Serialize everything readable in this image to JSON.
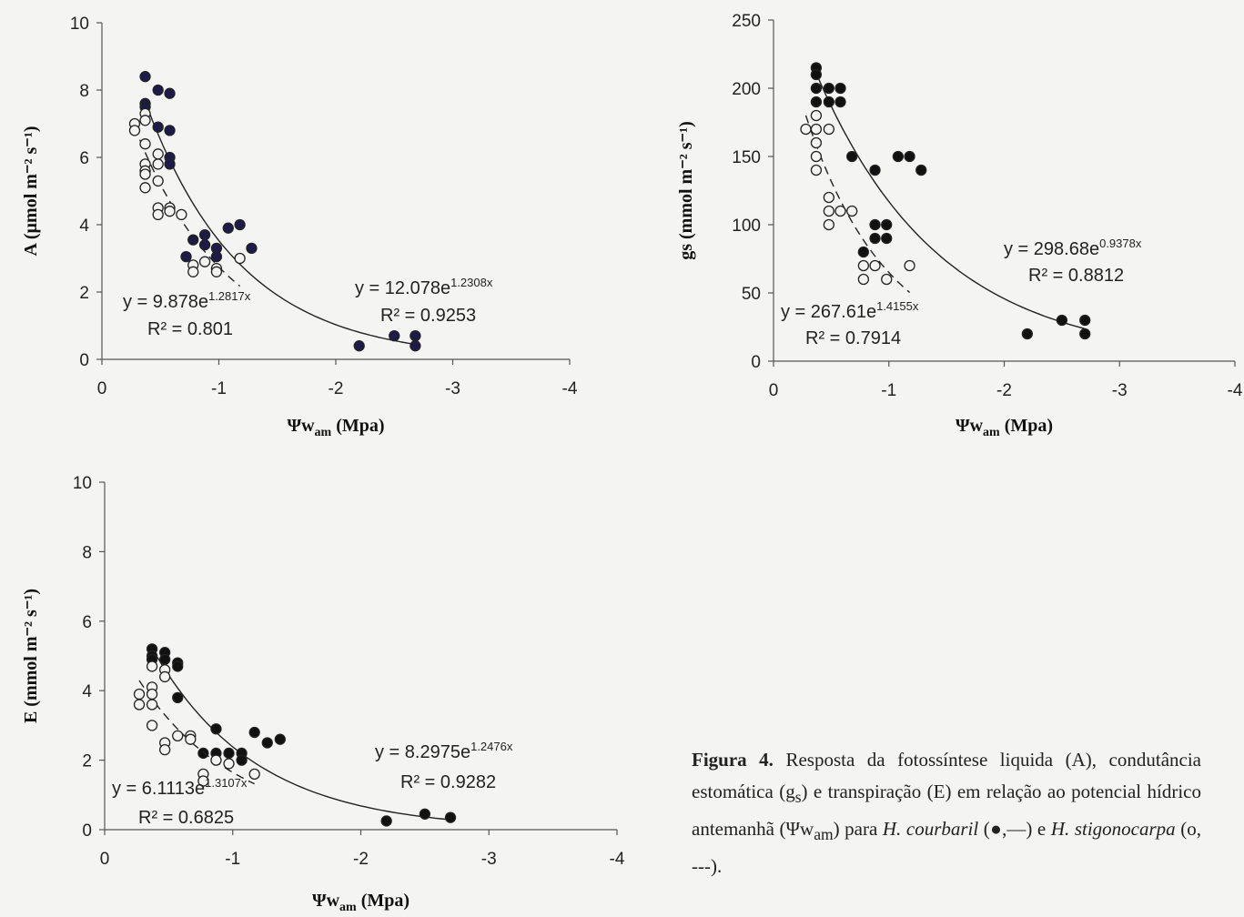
{
  "chart_data": [
    {
      "type": "scatter",
      "id": "A",
      "ylabel": "A (µmol m⁻² s⁻¹)",
      "xlabel": "Ψw_am (Mpa)",
      "xlim": [
        0,
        -4
      ],
      "ylim": [
        0,
        10
      ],
      "xticks": [
        "0",
        "-1",
        "-2",
        "-3",
        "-4"
      ],
      "yticks": [
        "0",
        "2",
        "4",
        "6",
        "8",
        "10"
      ],
      "series": [
        {
          "marker": "filled",
          "points": [
            [
              -0.37,
              8.4
            ],
            [
              -0.37,
              7.6
            ],
            [
              -0.37,
              7.5
            ],
            [
              -0.48,
              8.0
            ],
            [
              -0.58,
              7.9
            ],
            [
              -0.48,
              6.9
            ],
            [
              -0.58,
              6.8
            ],
            [
              -0.58,
              6.0
            ],
            [
              -0.58,
              5.8
            ],
            [
              -0.72,
              3.05
            ],
            [
              -0.78,
              3.55
            ],
            [
              -0.88,
              3.7
            ],
            [
              -0.88,
              3.4
            ],
            [
              -0.98,
              3.3
            ],
            [
              -0.98,
              3.05
            ],
            [
              -1.08,
              3.9
            ],
            [
              -1.18,
              4.0
            ],
            [
              -1.28,
              3.3
            ],
            [
              -2.2,
              0.4
            ],
            [
              -2.5,
              0.7
            ],
            [
              -2.68,
              0.7
            ],
            [
              -2.68,
              0.4
            ]
          ],
          "fit": {
            "a": 12.078,
            "b": 1.2308,
            "x_range": [
              -0.37,
              -2.68
            ],
            "style": "solid"
          },
          "equation": "y = 12.078e",
          "exponent": "1.2308x",
          "r2": "R² = 0.9253"
        },
        {
          "marker": "open",
          "points": [
            [
              -0.28,
              7.0
            ],
            [
              -0.28,
              6.8
            ],
            [
              -0.37,
              7.3
            ],
            [
              -0.37,
              7.1
            ],
            [
              -0.37,
              6.4
            ],
            [
              -0.37,
              5.8
            ],
            [
              -0.37,
              5.6
            ],
            [
              -0.37,
              5.5
            ],
            [
              -0.37,
              5.1
            ],
            [
              -0.48,
              6.1
            ],
            [
              -0.48,
              5.8
            ],
            [
              -0.48,
              5.3
            ],
            [
              -0.48,
              4.5
            ],
            [
              -0.48,
              4.3
            ],
            [
              -0.58,
              4.5
            ],
            [
              -0.58,
              4.4
            ],
            [
              -0.68,
              4.3
            ],
            [
              -0.78,
              2.8
            ],
            [
              -0.78,
              2.6
            ],
            [
              -0.88,
              2.9
            ],
            [
              -0.98,
              2.7
            ],
            [
              -0.98,
              2.6
            ],
            [
              -1.18,
              3.0
            ]
          ],
          "fit": {
            "a": 9.878,
            "b": 1.2817,
            "x_range": [
              -0.28,
              -1.18
            ],
            "style": "dashed"
          },
          "equation": "y = 9.878e",
          "exponent": "1.2817x",
          "r2": "R² = 0.801"
        }
      ]
    },
    {
      "type": "scatter",
      "id": "gs",
      "ylabel": "gs (mmol m⁻² s⁻¹)",
      "xlabel": "Ψw_am (Mpa)",
      "xlim": [
        0,
        -4
      ],
      "ylim": [
        0,
        250
      ],
      "xticks": [
        "0",
        "-1",
        "-2",
        "-3",
        "-4"
      ],
      "yticks": [
        "0",
        "50",
        "100",
        "150",
        "200",
        "250"
      ],
      "series": [
        {
          "marker": "filled",
          "points": [
            [
              -0.37,
              215
            ],
            [
              -0.37,
              210
            ],
            [
              -0.37,
              200
            ],
            [
              -0.37,
              190
            ],
            [
              -0.48,
              200
            ],
            [
              -0.48,
              190
            ],
            [
              -0.58,
              200
            ],
            [
              -0.58,
              190
            ],
            [
              -0.68,
              150
            ],
            [
              -0.78,
              80
            ],
            [
              -0.88,
              140
            ],
            [
              -0.88,
              100
            ],
            [
              -0.88,
              90
            ],
            [
              -0.98,
              100
            ],
            [
              -0.98,
              90
            ],
            [
              -1.08,
              150
            ],
            [
              -1.18,
              150
            ],
            [
              -1.28,
              140
            ],
            [
              -2.2,
              20
            ],
            [
              -2.5,
              30
            ],
            [
              -2.7,
              30
            ],
            [
              -2.7,
              20
            ]
          ],
          "fit": {
            "a": 298.68,
            "b": 0.9378,
            "x_range": [
              -0.37,
              -2.7
            ],
            "style": "solid"
          },
          "equation": "y = 298.68e",
          "exponent": "0.9378x",
          "r2": "R² = 0.8812"
        },
        {
          "marker": "open",
          "points": [
            [
              -0.28,
              170
            ],
            [
              -0.37,
              180
            ],
            [
              -0.37,
              170
            ],
            [
              -0.37,
              160
            ],
            [
              -0.37,
              150
            ],
            [
              -0.37,
              140
            ],
            [
              -0.48,
              170
            ],
            [
              -0.48,
              120
            ],
            [
              -0.48,
              110
            ],
            [
              -0.48,
              100
            ],
            [
              -0.58,
              110
            ],
            [
              -0.68,
              110
            ],
            [
              -0.78,
              70
            ],
            [
              -0.78,
              60
            ],
            [
              -0.88,
              70
            ],
            [
              -0.98,
              60
            ],
            [
              -1.18,
              70
            ]
          ],
          "fit": {
            "a": 267.61,
            "b": 1.4155,
            "x_range": [
              -0.28,
              -1.18
            ],
            "style": "dashed"
          },
          "equation": "y = 267.61e",
          "exponent": "1.4155x",
          "r2": "R² = 0.7914"
        }
      ]
    },
    {
      "type": "scatter",
      "id": "E",
      "ylabel": "E (mmol m⁻² s⁻¹)",
      "xlabel": "Ψw_am (Mpa)",
      "xlim": [
        0,
        -4
      ],
      "ylim": [
        0,
        10
      ],
      "xticks": [
        "0",
        "-1",
        "-2",
        "-3",
        "-4"
      ],
      "yticks": [
        "0",
        "2",
        "4",
        "6",
        "8",
        "10"
      ],
      "series": [
        {
          "marker": "filled",
          "points": [
            [
              -0.37,
              5.2
            ],
            [
              -0.37,
              5.0
            ],
            [
              -0.37,
              4.9
            ],
            [
              -0.47,
              5.1
            ],
            [
              -0.47,
              4.9
            ],
            [
              -0.57,
              4.8
            ],
            [
              -0.57,
              4.7
            ],
            [
              -0.57,
              3.8
            ],
            [
              -0.77,
              2.2
            ],
            [
              -0.87,
              2.9
            ],
            [
              -0.87,
              2.2
            ],
            [
              -0.97,
              2.2
            ],
            [
              -1.07,
              2.2
            ],
            [
              -1.07,
              2.0
            ],
            [
              -1.17,
              2.8
            ],
            [
              -1.27,
              2.5
            ],
            [
              -1.37,
              2.6
            ],
            [
              -2.2,
              0.25
            ],
            [
              -2.5,
              0.45
            ],
            [
              -2.7,
              0.35
            ]
          ],
          "fit": {
            "a": 8.2975,
            "b": 1.2476,
            "x_range": [
              -0.37,
              -2.7
            ],
            "style": "solid"
          },
          "equation": "y = 8.2975e",
          "exponent": "1.2476x",
          "r2": "R² = 0.9282"
        },
        {
          "marker": "open",
          "points": [
            [
              -0.27,
              3.9
            ],
            [
              -0.27,
              3.6
            ],
            [
              -0.37,
              4.7
            ],
            [
              -0.37,
              4.1
            ],
            [
              -0.37,
              3.9
            ],
            [
              -0.37,
              3.6
            ],
            [
              -0.37,
              3.0
            ],
            [
              -0.47,
              4.6
            ],
            [
              -0.47,
              4.4
            ],
            [
              -0.47,
              2.5
            ],
            [
              -0.47,
              2.3
            ],
            [
              -0.57,
              2.7
            ],
            [
              -0.67,
              2.7
            ],
            [
              -0.67,
              2.6
            ],
            [
              -0.77,
              1.6
            ],
            [
              -0.77,
              1.4
            ],
            [
              -0.87,
              2.0
            ],
            [
              -0.97,
              1.9
            ],
            [
              -1.17,
              1.6
            ]
          ],
          "fit": {
            "a": 6.1113,
            "b": 1.3107,
            "x_range": [
              -0.27,
              -1.17
            ],
            "style": "dashed"
          },
          "equation": "y = 6.1113e",
          "exponent": "1.3107x",
          "r2": "R² = 0.6825"
        }
      ]
    }
  ],
  "caption": {
    "label": "Figura 4.",
    "text_1": " Resposta da fotossíntese liquida (A), condutância estomática (g",
    "sub_1": "s",
    "text_2": ") e transpiração (E) em relação ao potencial hídrico antemanhã (Ψw",
    "sub_2": "am",
    "text_3": ") para ",
    "species_1": "H. courbaril",
    "legend_1": " (●,—) e ",
    "species_2": "H. stigonocarpa",
    "legend_2": " (o, ---)."
  }
}
